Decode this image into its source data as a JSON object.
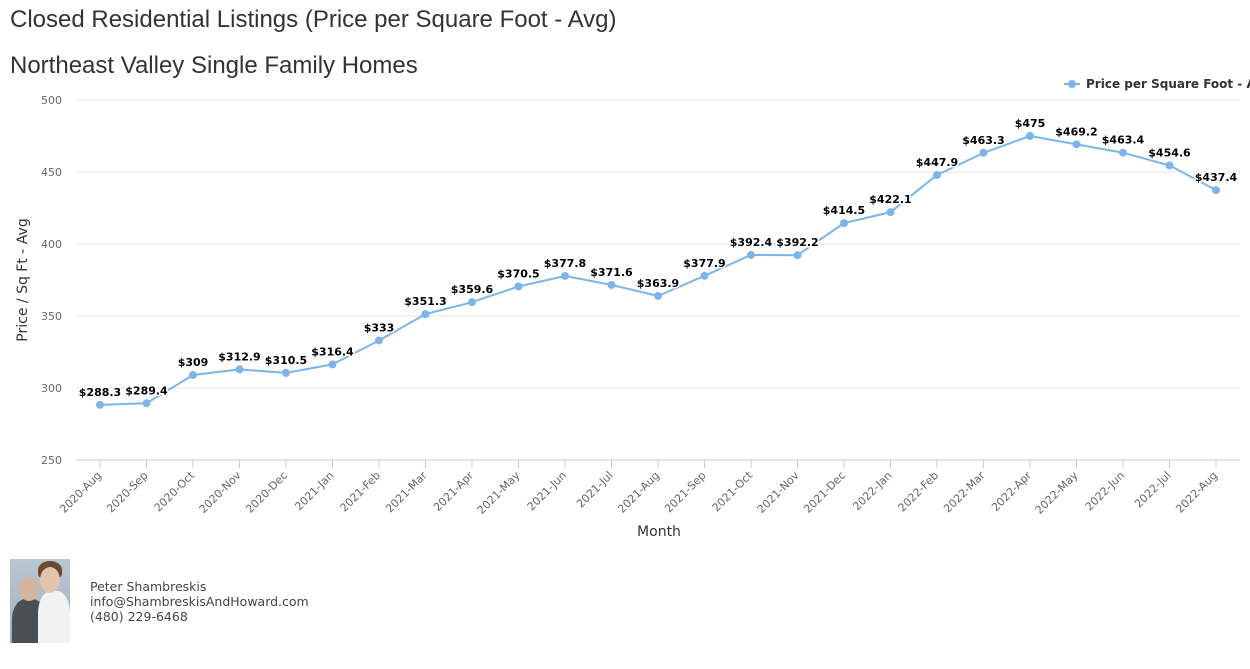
{
  "header": {
    "title": "Closed Residential Listings (Price per Square Foot - Avg)",
    "subtitle": "Northeast Valley Single Family Homes"
  },
  "chart_data": {
    "type": "line",
    "xlabel": "Month",
    "ylabel": "Price / Sq Ft - Avg",
    "ylim": [
      250,
      500
    ],
    "yticks": [
      250,
      300,
      350,
      400,
      450,
      500
    ],
    "grid": true,
    "legend_position": "top-right",
    "categories": [
      "2020-Aug",
      "2020-Sep",
      "2020-Oct",
      "2020-Nov",
      "2020-Dec",
      "2021-Jan",
      "2021-Feb",
      "2021-Mar",
      "2021-Apr",
      "2021-May",
      "2021-Jun",
      "2021-Jul",
      "2021-Aug",
      "2021-Sep",
      "2021-Oct",
      "2021-Nov",
      "2021-Dec",
      "2022-Jan",
      "2022-Feb",
      "2022-Mar",
      "2022-Apr",
      "2022-May",
      "2022-Jun",
      "2022-Jul",
      "2022-Aug"
    ],
    "series": [
      {
        "name": "Price per Square Foot - Avg",
        "color": "#7cb5ec",
        "values": [
          288.3,
          289.4,
          309,
          312.9,
          310.5,
          316.4,
          333,
          351.3,
          359.6,
          370.5,
          377.8,
          371.6,
          363.9,
          377.9,
          392.4,
          392.2,
          414.5,
          422.1,
          447.9,
          463.3,
          475,
          469.2,
          463.4,
          454.6,
          437.4
        ],
        "labels": [
          "$288.3",
          "$289.4",
          "$309",
          "$312.9",
          "$310.5",
          "$316.4",
          "$333",
          "$351.3",
          "$359.6",
          "$370.5",
          "$377.8",
          "$371.6",
          "$363.9",
          "$377.9",
          "$392.4",
          "$392.2",
          "$414.5",
          "$422.1",
          "$447.9",
          "$463.3",
          "$475",
          "$469.2",
          "$463.4",
          "$454.6",
          "$437.4"
        ]
      }
    ]
  },
  "footer": {
    "agent_name": "Peter Shambreskis",
    "email": "info@ShambreskisAndHoward.com",
    "phone": "(480) 229-6468"
  }
}
